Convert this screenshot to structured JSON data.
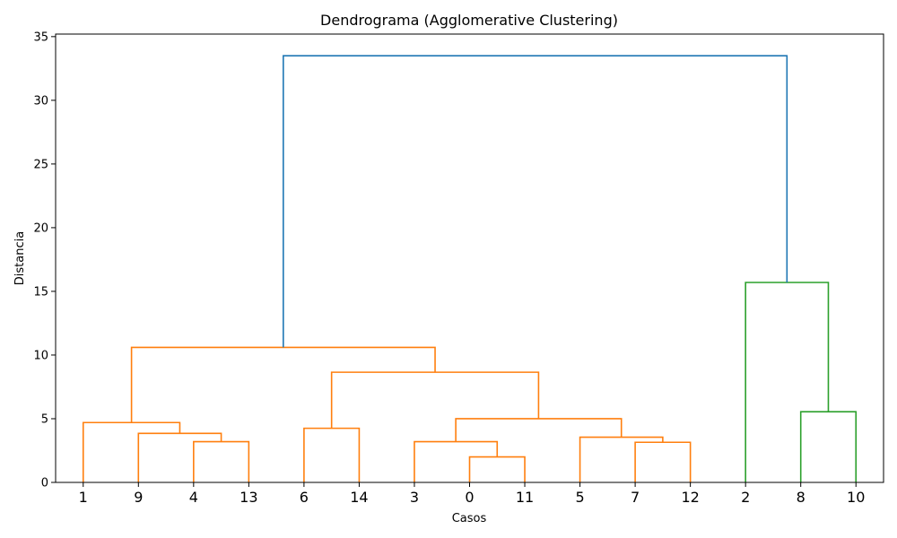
{
  "chart_data": {
    "type": "dendrogram",
    "title": "Dendrograma (Agglomerative Clustering)",
    "xlabel": "Casos",
    "ylabel": "Distancia",
    "ylim": [
      0,
      35.2
    ],
    "yticks": [
      0,
      5,
      10,
      15,
      20,
      25,
      30,
      35
    ],
    "leaf_order": [
      "1",
      "9",
      "4",
      "13",
      "6",
      "14",
      "3",
      "0",
      "11",
      "5",
      "7",
      "12",
      "2",
      "8",
      "10"
    ],
    "colors": {
      "orange": "#ff7f0e",
      "green": "#2ca02c",
      "blue": "#1f77b4"
    },
    "merges": [
      {
        "name": "merge-0-11",
        "left": "leaf:7",
        "right": "leaf:8",
        "height": 2.0,
        "color": "orange"
      },
      {
        "name": "merge-7-12",
        "left": "leaf:10",
        "right": "leaf:11",
        "height": 3.15,
        "color": "orange"
      },
      {
        "name": "merge-4-13",
        "left": "leaf:2",
        "right": "leaf:3",
        "height": 3.2,
        "color": "orange"
      },
      {
        "name": "merge-3-0-11",
        "left": "leaf:6",
        "right": "merge:0",
        "height": 3.2,
        "color": "orange"
      },
      {
        "name": "merge-5-7-12",
        "left": "leaf:9",
        "right": "merge:1",
        "height": 3.55,
        "color": "orange"
      },
      {
        "name": "merge-9-4-13",
        "left": "leaf:1",
        "right": "merge:2",
        "height": 3.85,
        "color": "orange"
      },
      {
        "name": "merge-6-14",
        "left": "leaf:4",
        "right": "leaf:5",
        "height": 4.25,
        "color": "orange"
      },
      {
        "name": "merge-1-9-4-13",
        "left": "leaf:0",
        "right": "merge:5",
        "height": 4.7,
        "color": "orange"
      },
      {
        "name": "merge-3-0-11-5-7-12",
        "left": "merge:3",
        "right": "merge:4",
        "height": 5.0,
        "color": "orange"
      },
      {
        "name": "merge-8-10",
        "left": "leaf:13",
        "right": "leaf:14",
        "height": 5.55,
        "color": "green"
      },
      {
        "name": "merge-6-14-group",
        "left": "merge:6",
        "right": "merge:8",
        "height": 8.65,
        "color": "orange"
      },
      {
        "name": "merge-orange-cluster",
        "left": "merge:7",
        "right": "merge:10",
        "height": 10.6,
        "color": "orange"
      },
      {
        "name": "merge-green-cluster",
        "left": "leaf:12",
        "right": "merge:9",
        "height": 15.7,
        "color": "green"
      },
      {
        "name": "merge-root",
        "left": "merge:11",
        "right": "merge:12",
        "height": 33.5,
        "color": "blue"
      }
    ]
  }
}
